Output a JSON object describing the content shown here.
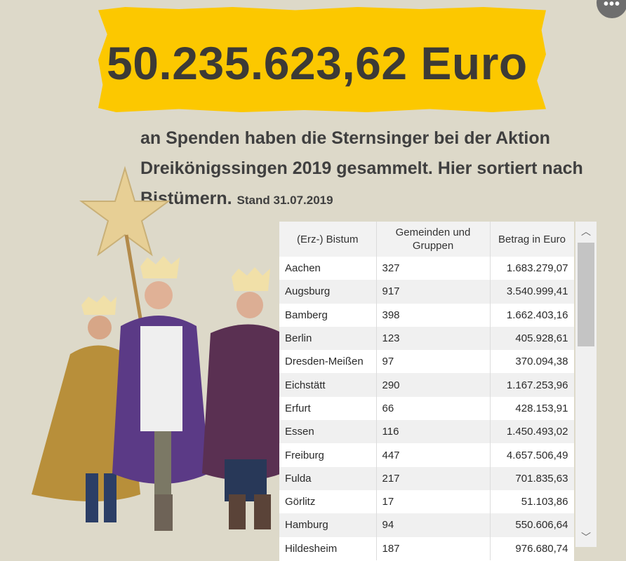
{
  "headline": {
    "amount": "50.235.623,62 Euro"
  },
  "intro": {
    "text": "an Spenden haben die Sternsinger bei der Aktion Dreikönigssingen 2019 gesammelt. Hier sortiert nach Bistümern.",
    "stand": "Stand 31.07.2019"
  },
  "menu": {
    "more_label": "•••"
  },
  "table": {
    "headers": [
      "(Erz-) Bistum",
      "Gemeinden und Gruppen",
      "Betrag in Euro"
    ],
    "rows": [
      [
        "Aachen",
        "327",
        "1.683.279,07"
      ],
      [
        "Augsburg",
        "917",
        "3.540.999,41"
      ],
      [
        "Bamberg",
        "398",
        "1.662.403,16"
      ],
      [
        "Berlin",
        "123",
        "405.928,61"
      ],
      [
        "Dresden-Meißen",
        "97",
        "370.094,38"
      ],
      [
        "Eichstätt",
        "290",
        "1.167.253,96"
      ],
      [
        "Erfurt",
        "66",
        "428.153,91"
      ],
      [
        "Essen",
        "116",
        "1.450.493,02"
      ],
      [
        "Freiburg",
        "447",
        "4.657.506,49"
      ],
      [
        "Fulda",
        "217",
        "701.835,63"
      ],
      [
        "Görlitz",
        "17",
        "51.103,86"
      ],
      [
        "Hamburg",
        "94",
        "550.606,64"
      ],
      [
        "Hildesheim",
        "187",
        "976.680,74"
      ]
    ]
  },
  "scrollbar": {
    "up_icon": "chevron-up-icon",
    "down_icon": "chevron-down-icon"
  },
  "colors": {
    "background": "#ddd9c9",
    "banner": "#fcc800",
    "text": "#3c3a36"
  }
}
